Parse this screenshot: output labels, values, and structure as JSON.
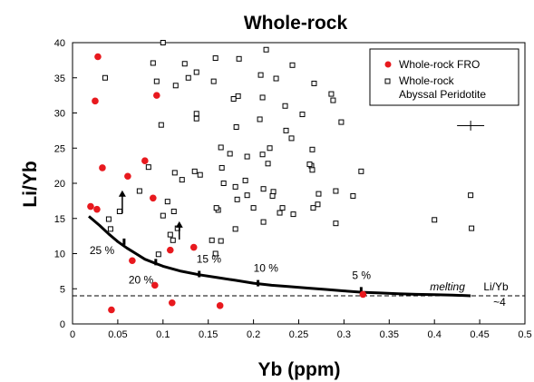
{
  "chart_data": {
    "type": "scatter",
    "title": "Whole-rock",
    "xlabel": "Yb (ppm)",
    "ylabel": "Li/Yb",
    "xlim": [
      0,
      0.5
    ],
    "ylim": [
      0,
      40
    ],
    "x_ticks": [
      "0",
      "0.05",
      "0.1",
      "0.15",
      "0.2",
      "0.25",
      "0.3",
      "0.35",
      "0.4",
      "0.45",
      "0.5"
    ],
    "y_ticks": [
      "0",
      "5",
      "10",
      "15",
      "20",
      "25",
      "30",
      "35",
      "40"
    ],
    "grid": false,
    "legend_position": "top-right",
    "series": [
      {
        "name": "Whole-rock FRO",
        "marker": "filled-circle",
        "color": "#e8191e",
        "points": [
          [
            0.028,
            38.0
          ],
          [
            0.025,
            31.7
          ],
          [
            0.093,
            32.5
          ],
          [
            0.033,
            22.2
          ],
          [
            0.061,
            21.0
          ],
          [
            0.08,
            23.2
          ],
          [
            0.089,
            17.9
          ],
          [
            0.02,
            16.7
          ],
          [
            0.027,
            16.3
          ],
          [
            0.066,
            9.0
          ],
          [
            0.108,
            10.5
          ],
          [
            0.134,
            10.9
          ],
          [
            0.091,
            5.5
          ],
          [
            0.11,
            3.0
          ],
          [
            0.043,
            2.0
          ],
          [
            0.163,
            2.6
          ],
          [
            0.321,
            4.2
          ]
        ]
      },
      {
        "name": "Whole-rock\nAbyssal Peridotite",
        "marker": "open-square",
        "color": "#000000",
        "points": [
          [
            0.1,
            40.0
          ],
          [
            0.158,
            37.8
          ],
          [
            0.214,
            39.0
          ],
          [
            0.184,
            37.7
          ],
          [
            0.137,
            35.8
          ],
          [
            0.128,
            35.0
          ],
          [
            0.208,
            35.4
          ],
          [
            0.243,
            36.8
          ],
          [
            0.089,
            37.1
          ],
          [
            0.124,
            37.0
          ],
          [
            0.225,
            34.9
          ],
          [
            0.267,
            34.2
          ],
          [
            0.156,
            34.5
          ],
          [
            0.036,
            35.0
          ],
          [
            0.093,
            34.5
          ],
          [
            0.114,
            33.9
          ],
          [
            0.183,
            32.4
          ],
          [
            0.286,
            32.7
          ],
          [
            0.288,
            31.8
          ],
          [
            0.235,
            31.0
          ],
          [
            0.21,
            32.2
          ],
          [
            0.178,
            32.0
          ],
          [
            0.137,
            29.9
          ],
          [
            0.137,
            29.2
          ],
          [
            0.207,
            29.1
          ],
          [
            0.254,
            29.8
          ],
          [
            0.297,
            28.7
          ],
          [
            0.098,
            28.3
          ],
          [
            0.181,
            28.0
          ],
          [
            0.236,
            27.5
          ],
          [
            0.242,
            26.4
          ],
          [
            0.218,
            25.0
          ],
          [
            0.164,
            25.1
          ],
          [
            0.174,
            24.2
          ],
          [
            0.193,
            23.8
          ],
          [
            0.21,
            24.1
          ],
          [
            0.265,
            24.8
          ],
          [
            0.084,
            22.3
          ],
          [
            0.264,
            22.5
          ],
          [
            0.135,
            21.7
          ],
          [
            0.165,
            22.2
          ],
          [
            0.121,
            20.5
          ],
          [
            0.216,
            22.8
          ],
          [
            0.262,
            22.7
          ],
          [
            0.265,
            21.9
          ],
          [
            0.113,
            21.5
          ],
          [
            0.141,
            21.2
          ],
          [
            0.191,
            20.4
          ],
          [
            0.167,
            20.0
          ],
          [
            0.18,
            19.5
          ],
          [
            0.211,
            19.2
          ],
          [
            0.222,
            18.8
          ],
          [
            0.193,
            18.3
          ],
          [
            0.182,
            17.7
          ],
          [
            0.161,
            16.2
          ],
          [
            0.229,
            15.8
          ],
          [
            0.244,
            15.6
          ],
          [
            0.221,
            18.2
          ],
          [
            0.272,
            18.5
          ],
          [
            0.271,
            17.0
          ],
          [
            0.266,
            16.5
          ],
          [
            0.2,
            16.5
          ],
          [
            0.105,
            17.4
          ],
          [
            0.074,
            18.9
          ],
          [
            0.112,
            16.0
          ],
          [
            0.1,
            15.4
          ],
          [
            0.052,
            16.0
          ],
          [
            0.04,
            14.9
          ],
          [
            0.042,
            13.5
          ],
          [
            0.291,
            18.9
          ],
          [
            0.108,
            12.7
          ],
          [
            0.116,
            13.6
          ],
          [
            0.159,
            16.5
          ],
          [
            0.232,
            16.5
          ],
          [
            0.111,
            11.9
          ],
          [
            0.154,
            11.9
          ],
          [
            0.164,
            11.8
          ],
          [
            0.18,
            13.5
          ],
          [
            0.211,
            14.5
          ],
          [
            0.31,
            18.2
          ],
          [
            0.319,
            21.7
          ],
          [
            0.291,
            14.3
          ],
          [
            0.4,
            14.8
          ],
          [
            0.441,
            13.6
          ],
          [
            0.44,
            18.3
          ],
          [
            0.095,
            9.9
          ],
          [
            0.158,
            10.0
          ]
        ]
      }
    ],
    "melting_curve": {
      "x": [
        0.018,
        0.03,
        0.04,
        0.05,
        0.06,
        0.07,
        0.08,
        0.09,
        0.1,
        0.12,
        0.14,
        0.16,
        0.18,
        0.2,
        0.22,
        0.24,
        0.26,
        0.28,
        0.3,
        0.32,
        0.34,
        0.36,
        0.38,
        0.4,
        0.42,
        0.44
      ],
      "y": [
        15.3,
        14.0,
        12.8,
        11.7,
        10.8,
        10.0,
        9.2,
        8.7,
        8.2,
        7.5,
        7.0,
        6.6,
        6.2,
        5.8,
        5.5,
        5.3,
        5.1,
        4.9,
        4.7,
        4.5,
        4.4,
        4.3,
        4.2,
        4.15,
        4.1,
        4.0
      ]
    },
    "melting_ticks": [
      {
        "label": "25 %",
        "x": 0.057,
        "y": 11.5
      },
      {
        "label": "20 %",
        "x": 0.092,
        "y": 8.6
      },
      {
        "label": "15 %",
        "x": 0.14,
        "y": 6.9
      },
      {
        "label": "10 %",
        "x": 0.205,
        "y": 5.6
      },
      {
        "label": "5 %",
        "x": 0.319,
        "y": 4.6
      }
    ],
    "arrows": [
      {
        "x": 0.055,
        "y_from": 15.7,
        "y_to": 19.0
      },
      {
        "x": 0.118,
        "y_from": 12.0,
        "y_to": 14.6
      }
    ],
    "error_bar": {
      "x": 0.44,
      "y": 28.2,
      "x_err": 0.015,
      "y_err": 0.7
    },
    "reference_line": {
      "y": 4.0,
      "style": "dashed",
      "label_line1": "Li/Yb",
      "label_line2": "~4"
    },
    "annotations": [
      {
        "text": "melting",
        "x": 0.395,
        "y": 4.1
      }
    ]
  }
}
